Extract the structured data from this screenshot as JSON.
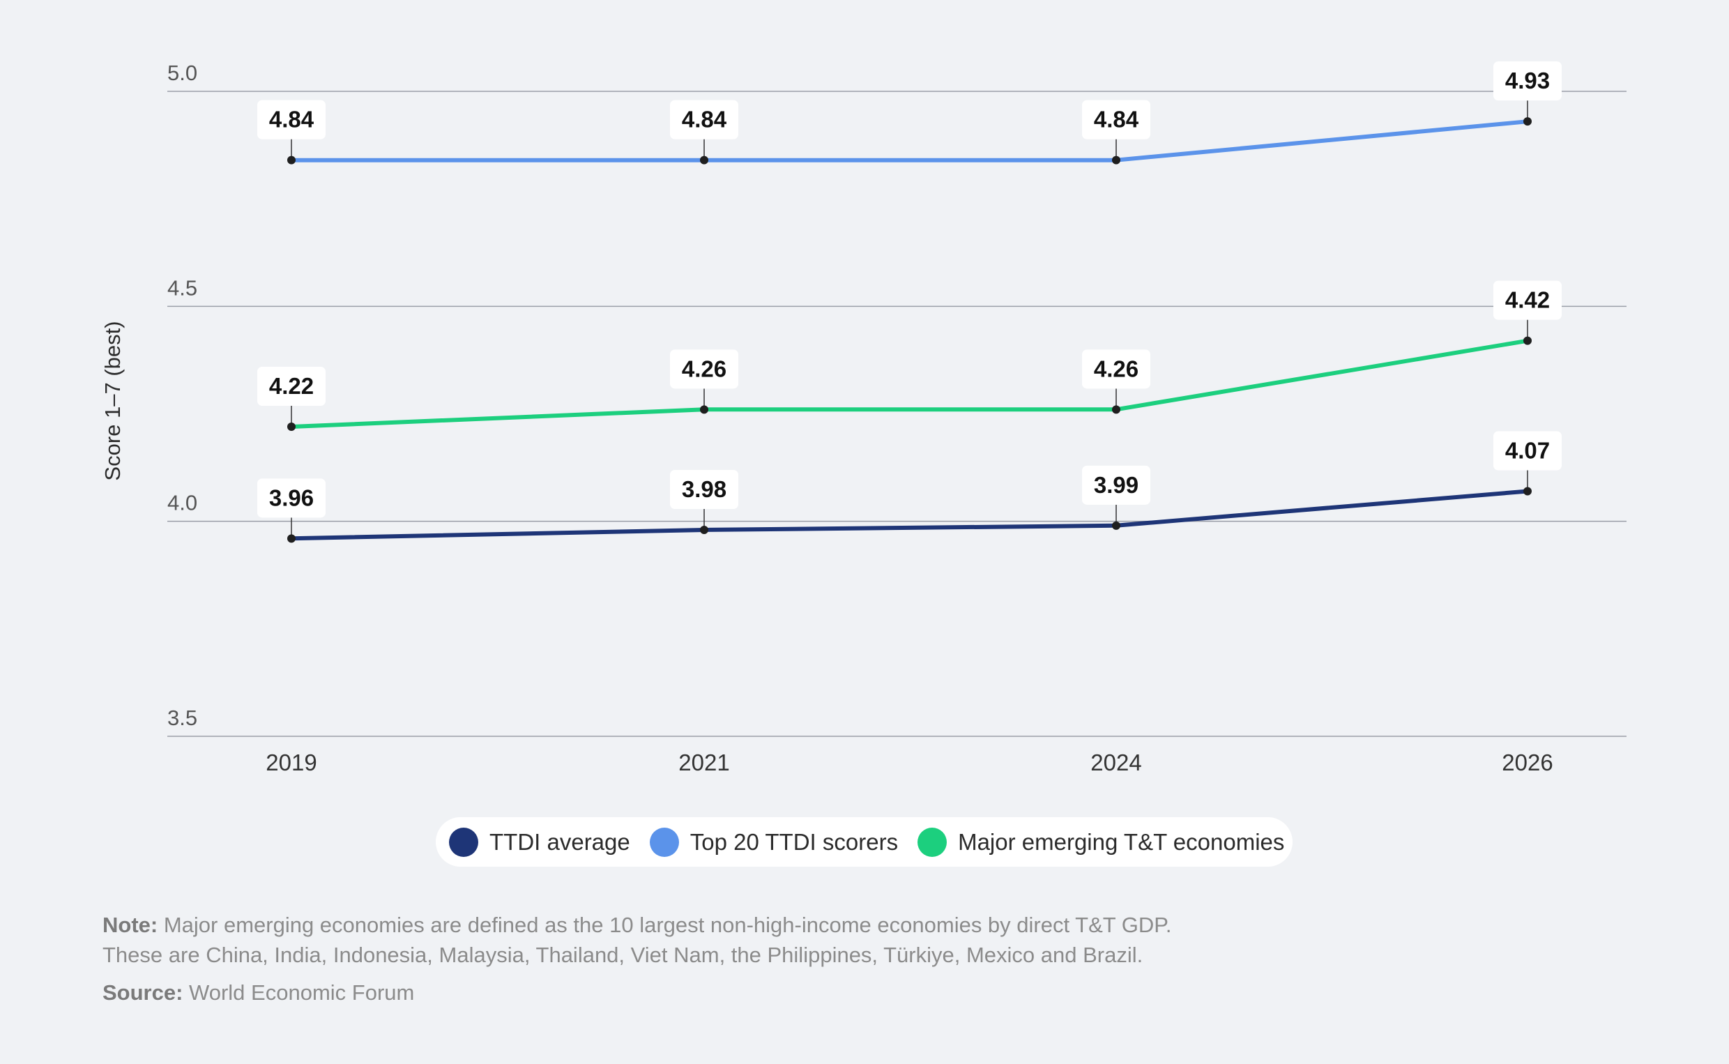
{
  "chart_data": {
    "type": "line",
    "ylabel": "Score 1–7 (best)",
    "xlabel": "",
    "ylim": [
      3.5,
      5.0
    ],
    "yticks": [
      "3.5",
      "4.0",
      "4.5",
      "5.0"
    ],
    "categories": [
      "2019",
      "2021",
      "2024",
      "2026"
    ],
    "grid": true,
    "legend_position": "bottom-center",
    "series": [
      {
        "name": "TTDI average",
        "color": "#1e3577",
        "values": [
          3.96,
          3.98,
          3.99,
          4.07
        ],
        "labels": [
          "3.96",
          "3.98",
          "3.99",
          "4.07"
        ]
      },
      {
        "name": "Top 20 TTDI scorers",
        "color": "#5b93ea",
        "values": [
          4.84,
          4.84,
          4.84,
          4.93
        ],
        "labels": [
          "4.84",
          "4.84",
          "4.84",
          "4.93"
        ]
      },
      {
        "name": "Major emerging T&T economies",
        "color": "#1ccf7e",
        "values": [
          4.22,
          4.26,
          4.26,
          4.42
        ],
        "labels": [
          "4.22",
          "4.26",
          "4.26",
          "4.42"
        ]
      }
    ]
  },
  "notes": {
    "note_label": "Note:",
    "note_line1": " Major emerging economies are defined as the 10 largest non-high-income economies by direct T&T GDP.",
    "note_line2": "These are China, India, Indonesia, Malaysia, Thailand, Viet Nam, the Philippines, Türkiye, Mexico and Brazil.",
    "source_label": "Source:",
    "source_text": " World Economic Forum"
  }
}
